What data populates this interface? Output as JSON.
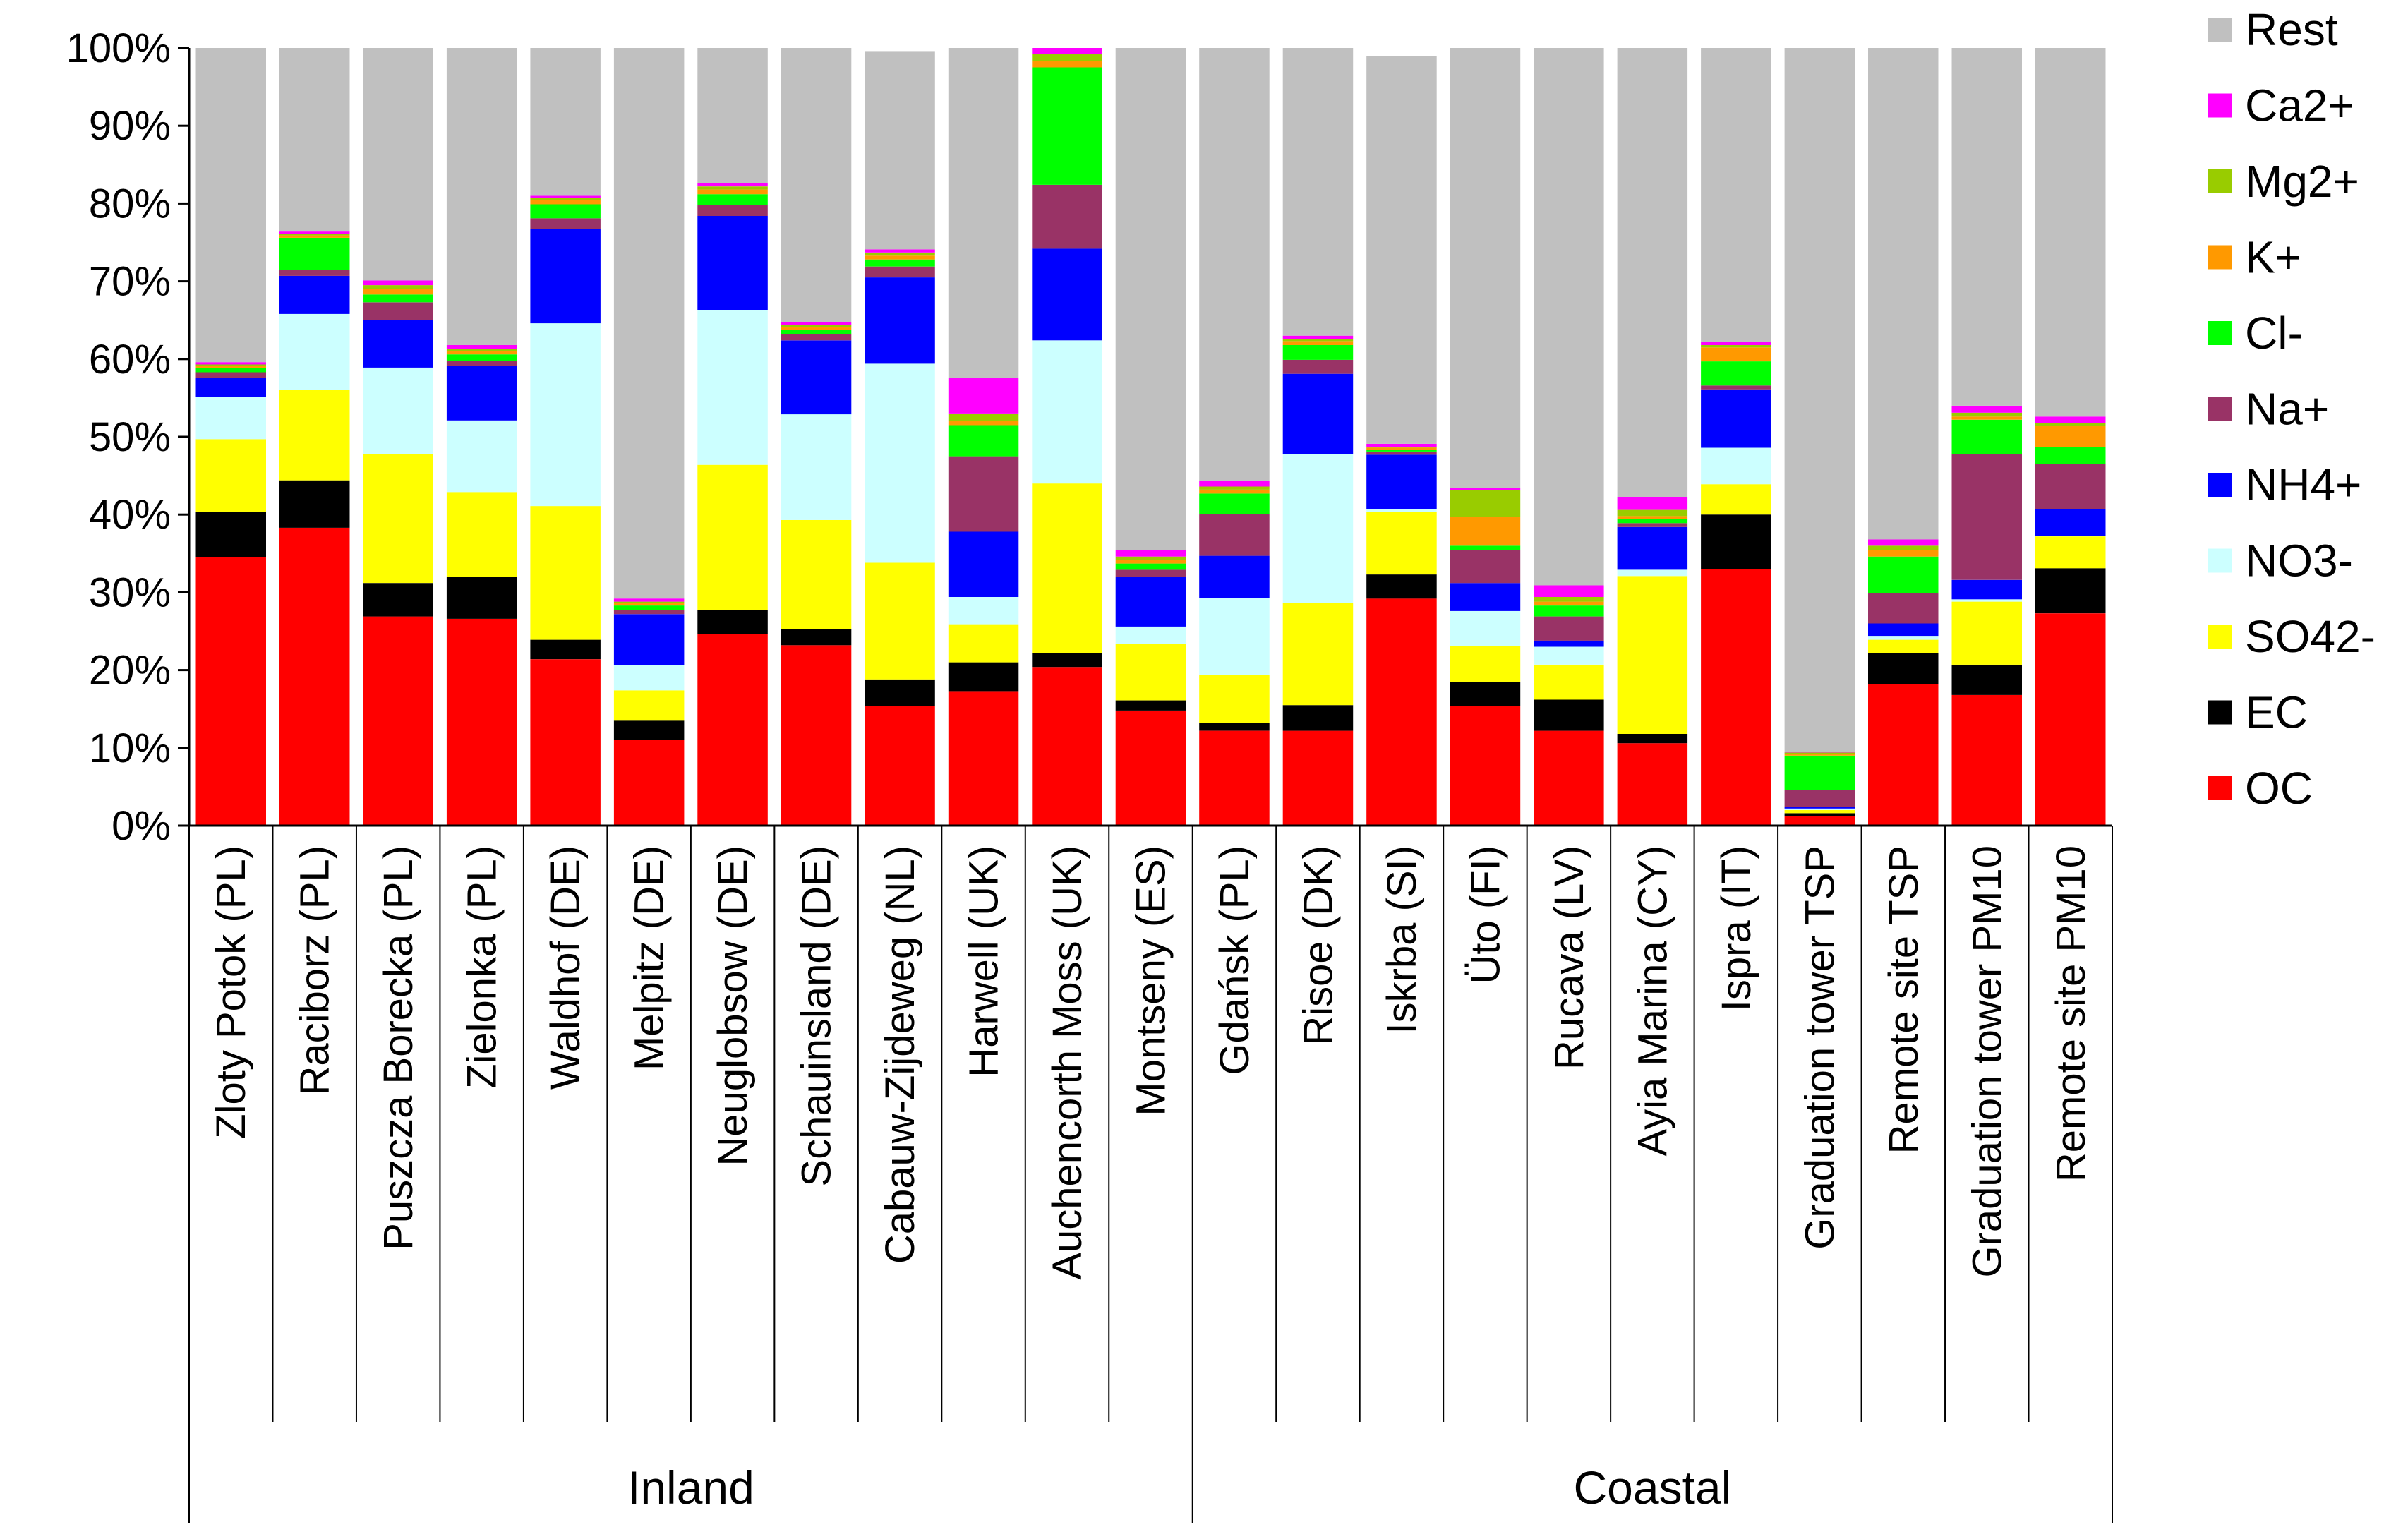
{
  "chart_data": {
    "type": "stacked-bar-100",
    "y_ticks": [
      "0%",
      "10%",
      "20%",
      "30%",
      "40%",
      "50%",
      "60%",
      "70%",
      "80%",
      "90%",
      "100%"
    ],
    "ylim": [
      0,
      100
    ],
    "grid": false,
    "legend_position": "right",
    "groups": [
      {
        "label": "Inland",
        "start": 0,
        "end": 11
      },
      {
        "label": "Coastal",
        "start": 12,
        "end": 22
      }
    ],
    "categories": [
      "Zloty Potok (PL)",
      "Raciborz (PL)",
      "Puszcza Borecka (PL)",
      "Zielonka (PL)",
      "Waldhof (DE)",
      "Melpitz (DE)",
      "Neuglobsow (DE)",
      "Schauinsland (DE)",
      "Cabauw-Zijdeweg (NL)",
      "Harwell (UK)",
      "Auchencorth Moss (UK)",
      "Montseny (ES)",
      "Gdańsk (PL)",
      "Risoe (DK)",
      "Iskrba (SI)",
      "Üto (FI)",
      "Rucava (LV)",
      "Ayia Marina (CY)",
      "Ispra (IT)",
      "Graduation tower TSP",
      "Remote site TSP",
      "Graduation tower PM10",
      "Remote site PM10"
    ],
    "series": [
      {
        "name": "OC",
        "color": "#ff0000",
        "values": [
          34.5,
          38.3,
          26.9,
          26.6,
          21.4,
          11.0,
          24.6,
          23.2,
          15.4,
          17.3,
          20.4,
          14.8,
          12.2,
          12.2,
          29.2,
          15.4,
          12.2,
          10.6,
          33.0,
          1.2,
          18.2,
          16.8,
          27.3
        ]
      },
      {
        "name": "EC",
        "color": "#000000",
        "values": [
          5.8,
          6.1,
          4.3,
          5.4,
          2.5,
          2.5,
          3.1,
          2.1,
          3.4,
          3.7,
          1.8,
          1.3,
          1.0,
          3.3,
          3.1,
          3.1,
          4.0,
          1.2,
          7.0,
          0.4,
          4.0,
          3.9,
          5.8
        ]
      },
      {
        "name": "SO42-",
        "color": "#ffff00",
        "values": [
          9.4,
          11.6,
          16.6,
          10.9,
          17.2,
          3.9,
          18.7,
          14.0,
          15.0,
          4.9,
          21.8,
          7.3,
          6.2,
          13.1,
          8.0,
          4.6,
          4.5,
          20.3,
          3.9,
          0.4,
          1.7,
          8.1,
          4.1
        ]
      },
      {
        "name": "NO3-",
        "color": "#ccffff",
        "values": [
          5.4,
          9.8,
          11.1,
          9.2,
          23.5,
          3.2,
          19.9,
          13.6,
          25.6,
          3.5,
          18.4,
          2.2,
          9.9,
          19.2,
          0.4,
          4.5,
          2.3,
          0.8,
          4.7,
          0.2,
          0.5,
          0.3,
          0.1
        ]
      },
      {
        "name": "NH4+",
        "color": "#0000ff",
        "values": [
          2.5,
          4.9,
          6.1,
          7.0,
          12.1,
          6.6,
          12.1,
          9.5,
          11.1,
          8.4,
          11.8,
          6.4,
          5.4,
          10.3,
          7.0,
          3.6,
          0.8,
          5.5,
          7.5,
          0.2,
          1.6,
          2.5,
          3.4
        ]
      },
      {
        "name": "Na+",
        "color": "#993366",
        "values": [
          0.7,
          0.8,
          2.3,
          0.7,
          1.4,
          0.5,
          1.4,
          0.8,
          1.4,
          9.7,
          8.2,
          0.9,
          5.4,
          1.8,
          0.4,
          4.2,
          3.1,
          0.5,
          0.5,
          2.2,
          3.9,
          16.2,
          5.8
        ]
      },
      {
        "name": "Cl-",
        "color": "#00ff00",
        "values": [
          0.5,
          4.1,
          1.0,
          0.8,
          1.8,
          0.6,
          1.4,
          0.5,
          0.9,
          4.0,
          15.1,
          0.8,
          2.6,
          1.9,
          0.2,
          0.6,
          1.4,
          0.5,
          3.1,
          4.4,
          4.7,
          4.4,
          2.2
        ]
      },
      {
        "name": "K+",
        "color": "#ff9900",
        "values": [
          0.3,
          0.3,
          0.7,
          0.4,
          0.5,
          0.3,
          0.6,
          0.4,
          0.5,
          0.5,
          0.8,
          0.5,
          0.5,
          0.5,
          0.3,
          3.7,
          0.5,
          0.4,
          1.8,
          0.2,
          0.8,
          0.4,
          2.7
        ]
      },
      {
        "name": "Mg2+",
        "color": "#99cc00",
        "values": [
          0.2,
          0.2,
          0.5,
          0.3,
          0.3,
          0.2,
          0.4,
          0.3,
          0.4,
          1.0,
          0.9,
          0.4,
          0.4,
          0.3,
          0.1,
          3.4,
          0.6,
          0.8,
          0.3,
          0.2,
          0.6,
          0.5,
          0.4
        ]
      },
      {
        "name": "Ca2+",
        "color": "#ff00ff",
        "values": [
          0.3,
          0.3,
          0.6,
          0.5,
          0.3,
          0.4,
          0.4,
          0.3,
          0.4,
          4.6,
          0.8,
          0.8,
          0.7,
          0.4,
          0.4,
          0.3,
          1.5,
          1.6,
          0.4,
          0.1,
          0.8,
          0.9,
          0.8
        ]
      },
      {
        "name": "Rest",
        "color": "#c0c0c0",
        "values": [
          40.4,
          23.6,
          29.9,
          38.2,
          19.2,
          70.8,
          17.4,
          35.3,
          25.5,
          42.4,
          0.0,
          64.6,
          55.7,
          37.0,
          49.9,
          56.6,
          69.1,
          58.3,
          37.8,
          90.5,
          63.2,
          46.0,
          47.4
        ]
      }
    ]
  }
}
